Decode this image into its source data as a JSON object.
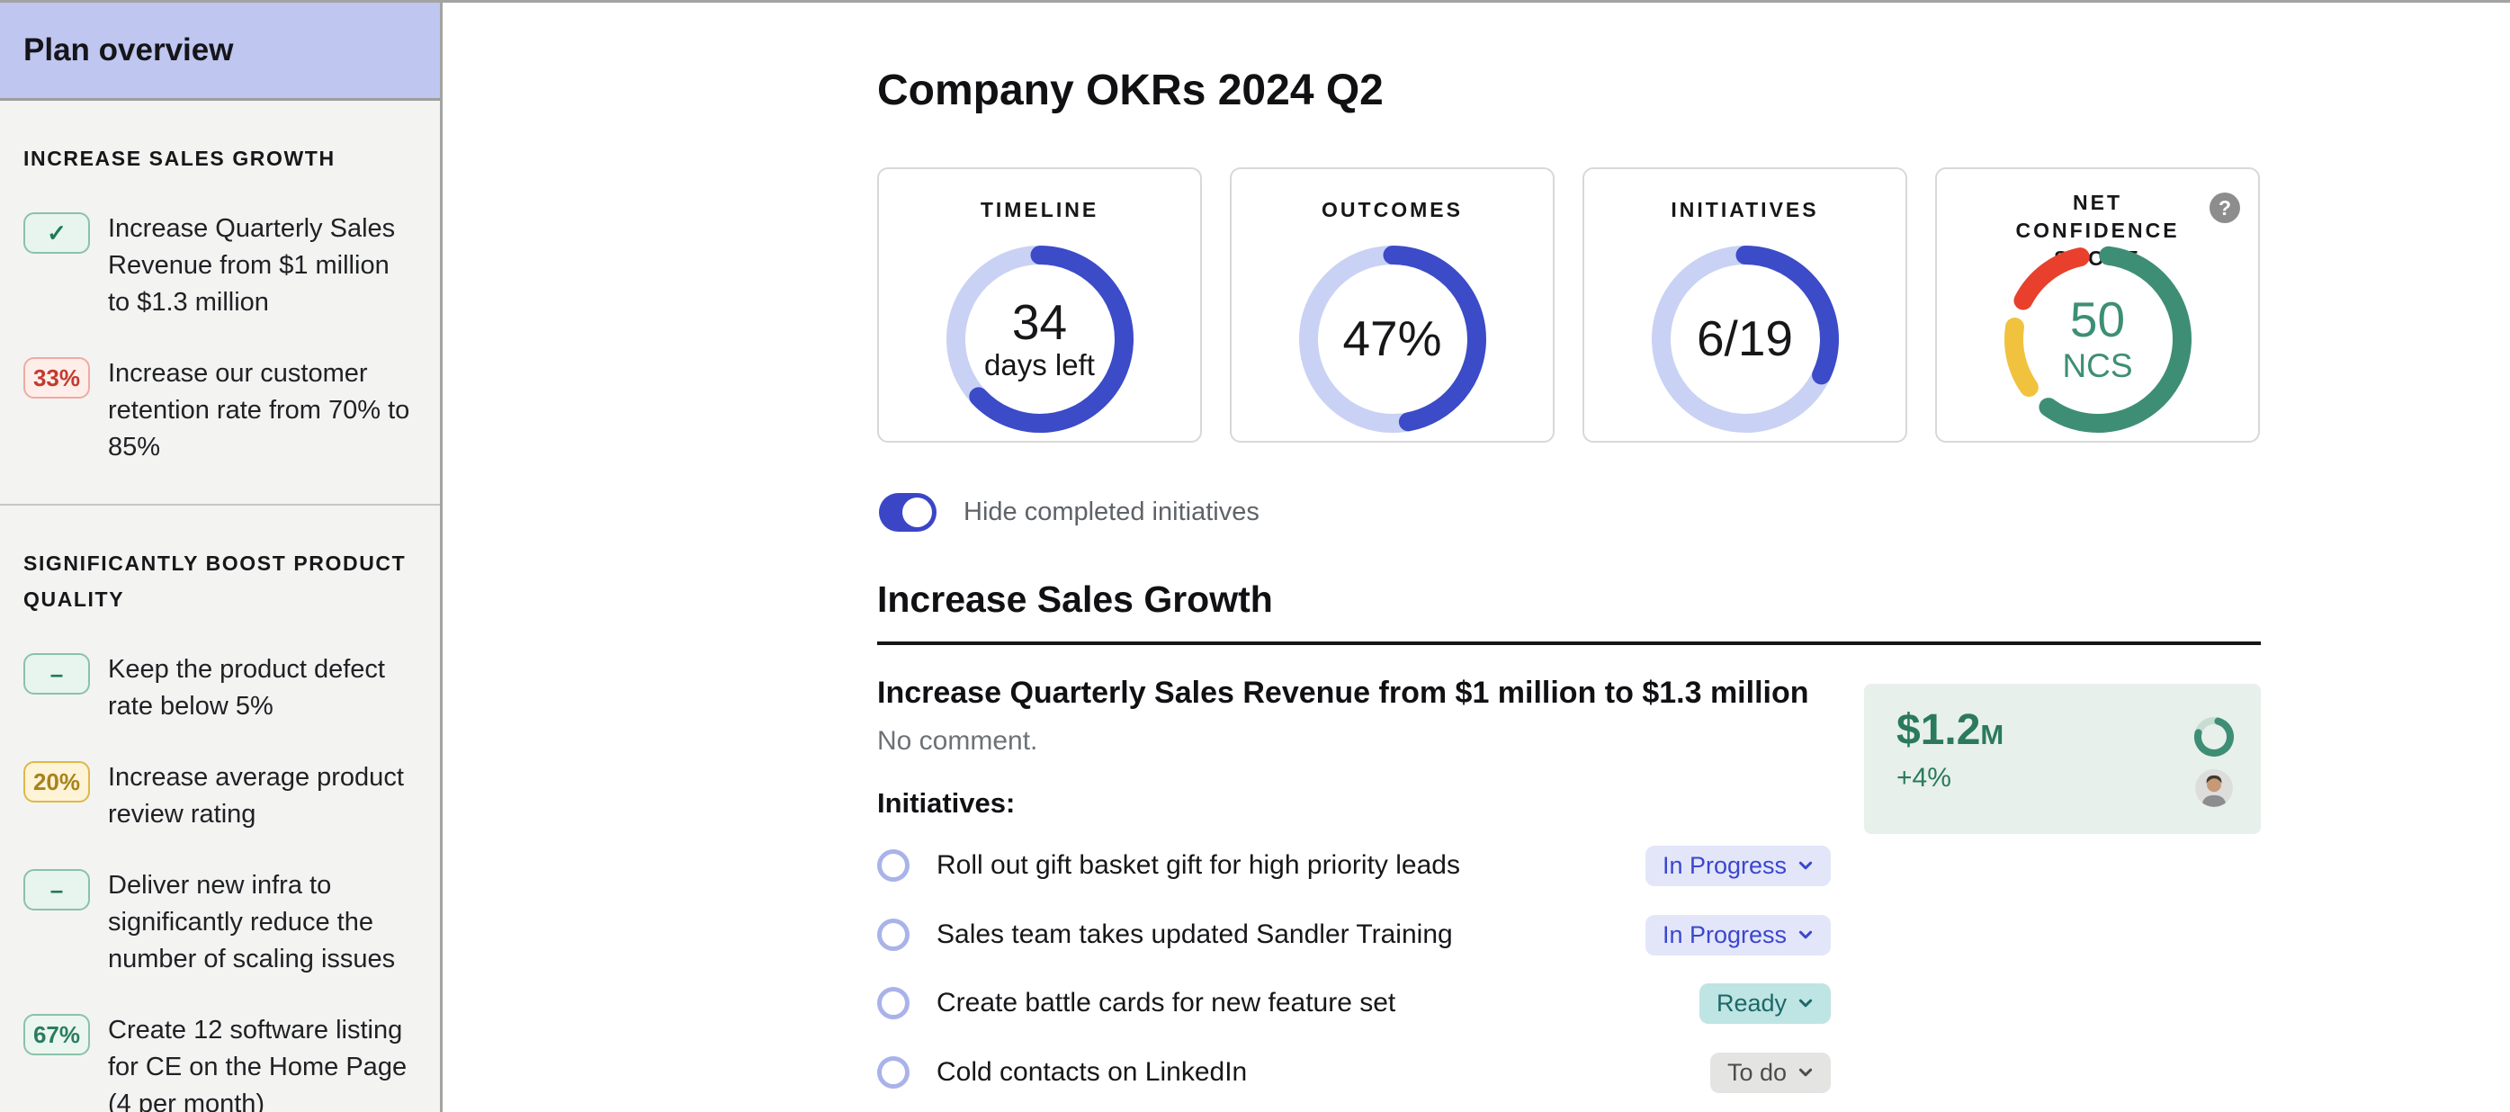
{
  "sidebar": {
    "title": "Plan overview",
    "sections": [
      {
        "heading": "INCREASE SALES GROWTH",
        "items": [
          {
            "badge": "✓",
            "badge_type": "check-green",
            "text": "Increase Quarterly Sales Revenue from $1 million to $1.3 million"
          },
          {
            "badge": "33%",
            "badge_type": "red",
            "text": "Increase our customer retention rate from 70% to 85%"
          }
        ]
      },
      {
        "heading": "SIGNIFICANTLY BOOST PRODUCT QUALITY",
        "items": [
          {
            "badge": "–",
            "badge_type": "dash-green",
            "text": "Keep the product defect rate below 5%"
          },
          {
            "badge": "20%",
            "badge_type": "yellow",
            "text": "Increase average product review rating"
          },
          {
            "badge": "–",
            "badge_type": "dash-green",
            "text": "Deliver new infra to significantly reduce the number of scaling issues"
          },
          {
            "badge": "67%",
            "badge_type": "teal",
            "text": "Create 12 software listing for CE on the Home Page (4 per month)"
          }
        ]
      }
    ]
  },
  "main": {
    "title": "Company OKRs 2024 Q2",
    "toggle": {
      "label": "Hide completed initiatives",
      "state": "on",
      "color": "#3a46c6"
    },
    "section_title": "Increase Sales Growth",
    "objective": {
      "title": "Increase Quarterly Sales Revenue from $1 million to $1.3 million",
      "comment": "No comment.",
      "metric": {
        "value": "$1.2",
        "unit": "M",
        "delta": "+4%",
        "accent_color": "#2b7a5c",
        "background": "#e7f0eb"
      }
    },
    "initiatives_label": "Initiatives:",
    "initiatives": [
      {
        "text": "Roll out gift basket gift for high priority leads",
        "status": "In Progress",
        "status_type": "in-progress"
      },
      {
        "text": "Sales team takes updated Sandler Training",
        "status": "In Progress",
        "status_type": "in-progress"
      },
      {
        "text": "Create battle cards for new feature set",
        "status": "Ready",
        "status_type": "ready"
      },
      {
        "text": "Cold contacts on LinkedIn",
        "status": "To do",
        "status_type": "todo"
      }
    ],
    "help_icon_glyph": "?"
  },
  "chart_data": [
    {
      "type": "donut",
      "title": "TIMELINE",
      "center_value": "34",
      "center_label": "days left",
      "percent": 63,
      "start_percent": 0,
      "fill_color": "#3c4bc8",
      "track_color": "#c9d2f4"
    },
    {
      "type": "donut",
      "title": "OUTCOMES",
      "center_value": "47%",
      "center_label": "",
      "percent": 47,
      "start_percent": 0,
      "fill_color": "#3c4bc8",
      "track_color": "#c9d2f4"
    },
    {
      "type": "donut",
      "title": "INITIATIVES",
      "center_value": "6/19",
      "center_label": "",
      "percent": 32,
      "start_percent": 0,
      "fill_color": "#3c4bc8",
      "track_color": "#c9d2f4"
    },
    {
      "type": "segmented_donut",
      "title": "NET CONFIDENCE SCORE",
      "center_value": "50",
      "center_label": "NCS",
      "start_percent": 2,
      "gap_percent": 5.3,
      "segments": [
        {
          "label": "on-track",
          "color": "#3e8e75",
          "percent": 58
        },
        {
          "label": "at-risk",
          "color": "#f1c23d",
          "percent": 12
        },
        {
          "label": "off-track",
          "color": "#e8402c",
          "percent": 14
        }
      ]
    },
    {
      "type": "donut",
      "title": "key-result-progress",
      "center_value": "",
      "center_label": "",
      "percent": 75,
      "start_percent": 4,
      "fill_color": "#3e8e75",
      "track_color": "#c7ddd2"
    }
  ]
}
